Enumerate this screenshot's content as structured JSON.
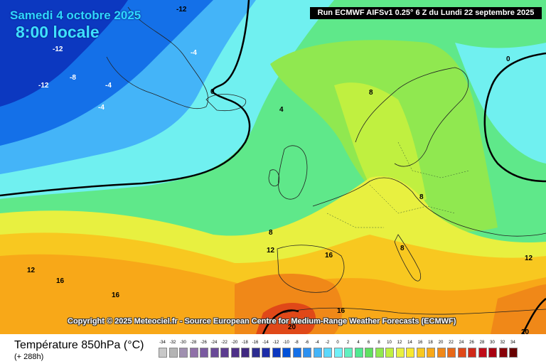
{
  "header": {
    "date_line": "Samedi 4 octobre 2025",
    "time_line": "8:00 locale",
    "run_info": "Run ECMWF AIFSv1 0.25° 6 Z du Lundi 22 septembre 2025"
  },
  "copyright": "Copyright © 2025 Meteociel.fr - Source European Centre for Medium-Range Weather Forecasts (ECMWF)",
  "footer": {
    "title": "Température 850hPa (°C)",
    "subtitle": "(+ 288h)"
  },
  "legend": {
    "ticks": [
      "-34",
      "-32",
      "-30",
      "-28",
      "-26",
      "-24",
      "-22",
      "-20",
      "-18",
      "-16",
      "-14",
      "-12",
      "-10",
      "-8",
      "-6",
      "-4",
      "-2",
      "0",
      "2",
      "4",
      "6",
      "8",
      "10",
      "12",
      "14",
      "16",
      "18",
      "20",
      "22",
      "24",
      "26",
      "28",
      "30",
      "32",
      "34"
    ],
    "colors": [
      "#c8c8c8",
      "#b4b4b4",
      "#a090b0",
      "#9070a8",
      "#7a5aa0",
      "#6a4a98",
      "#5c3c90",
      "#4e3088",
      "#402880",
      "#2c2c90",
      "#1c2ca8",
      "#0c38c0",
      "#0050d8",
      "#1470e8",
      "#2c90f0",
      "#44b4f8",
      "#5cd8fc",
      "#70f0f8",
      "#60f0c0",
      "#50e890",
      "#60e060",
      "#90e850",
      "#c0f040",
      "#e8f040",
      "#f8e830",
      "#f8c820",
      "#f8a818",
      "#f08818",
      "#e86818",
      "#e04818",
      "#d02818",
      "#c00c18",
      "#a80010",
      "#880008",
      "#680000"
    ]
  },
  "map_labels": [
    {
      "text": "-12"
    },
    {
      "text": "-12"
    },
    {
      "text": "-12"
    },
    {
      "text": "-8"
    },
    {
      "text": "-4"
    },
    {
      "text": "-4"
    },
    {
      "text": "-4"
    },
    {
      "text": "0"
    },
    {
      "text": "0"
    },
    {
      "text": "4"
    },
    {
      "text": "8"
    },
    {
      "text": "8"
    },
    {
      "text": "8"
    },
    {
      "text": "8"
    },
    {
      "text": "12"
    },
    {
      "text": "12"
    },
    {
      "text": "12"
    },
    {
      "text": "16"
    },
    {
      "text": "16"
    },
    {
      "text": "16"
    },
    {
      "text": "16"
    },
    {
      "text": "20"
    },
    {
      "text": "12"
    },
    {
      "text": "20"
    }
  ]
}
